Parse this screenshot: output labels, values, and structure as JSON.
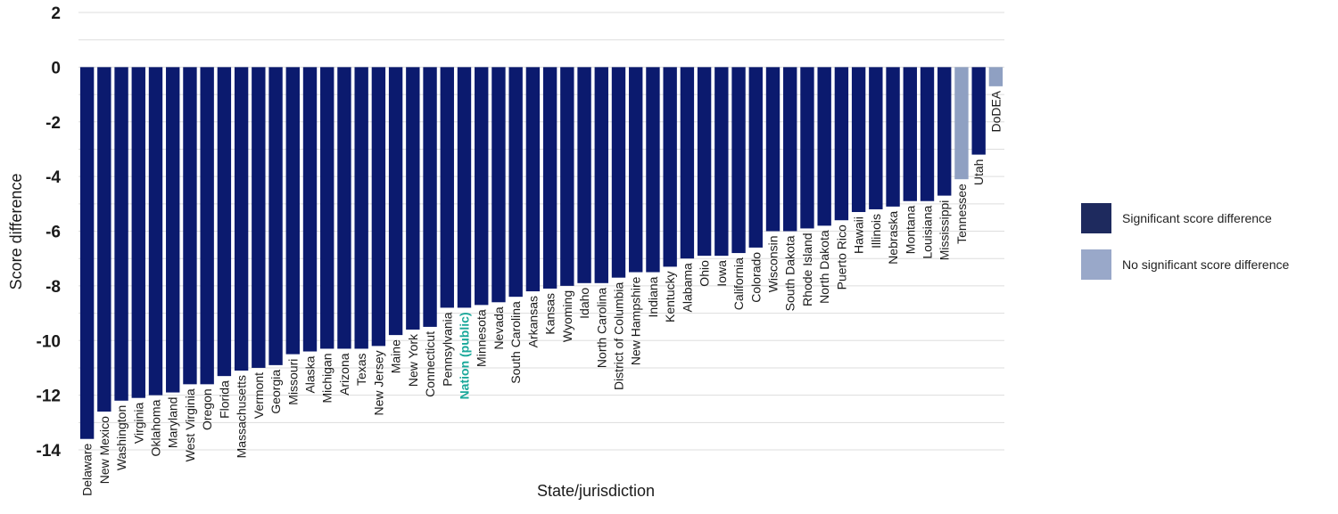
{
  "chart_data": {
    "type": "bar",
    "xlabel": "State/jurisdiction",
    "ylabel": "Score difference",
    "ylim": [
      -14,
      2
    ],
    "yticks": [
      2,
      0,
      -2,
      -4,
      -6,
      -8,
      -10,
      -12,
      -14
    ],
    "grid": true,
    "legend_placement": "right",
    "categories": [
      "Delaware",
      "New Mexico",
      "Washington",
      "Virginia",
      "Oklahoma",
      "Maryland",
      "West Virginia",
      "Oregon",
      "Florida",
      "Massachusetts",
      "Vermont",
      "Georgia",
      "Missouri",
      "Alaska",
      "Michigan",
      "Arizona",
      "Texas",
      "New Jersey",
      "Maine",
      "New York",
      "Connecticut",
      "Pennsylvania",
      "Nation (public)",
      "Minnesota",
      "Nevada",
      "South Carolina",
      "Arkansas",
      "Kansas",
      "Wyoming",
      "Idaho",
      "North Carolina",
      "District of Columbia",
      "New Hampshire",
      "Indiana",
      "Kentucky",
      "Alabama",
      "Ohio",
      "Iowa",
      "California",
      "Colorado",
      "Wisconsin",
      "South Dakota",
      "Rhode Island",
      "North Dakota",
      "Puerto Rico",
      "Hawaii",
      "Illinois",
      "Nebraska",
      "Montana",
      "Louisiana",
      "Mississippi",
      "Tennessee",
      "Utah",
      "DoDEA"
    ],
    "values": [
      -13.6,
      -12.6,
      -12.2,
      -12.1,
      -12.0,
      -11.9,
      -11.6,
      -11.6,
      -11.3,
      -11.1,
      -11.0,
      -10.9,
      -10.5,
      -10.4,
      -10.3,
      -10.3,
      -10.3,
      -10.2,
      -9.8,
      -9.6,
      -9.5,
      -8.8,
      -8.8,
      -8.7,
      -8.6,
      -8.4,
      -8.2,
      -8.1,
      -8.0,
      -7.9,
      -7.9,
      -7.7,
      -7.5,
      -7.5,
      -7.3,
      -7.0,
      -6.9,
      -6.9,
      -6.8,
      -6.6,
      -6.0,
      -6.0,
      -5.9,
      -5.8,
      -5.6,
      -5.3,
      -5.2,
      -5.1,
      -4.9,
      -4.9,
      -4.7,
      -4.1,
      -3.2,
      -0.7
    ],
    "significant": [
      true,
      true,
      true,
      true,
      true,
      true,
      true,
      true,
      true,
      true,
      true,
      true,
      true,
      true,
      true,
      true,
      true,
      true,
      true,
      true,
      true,
      true,
      true,
      true,
      true,
      true,
      true,
      true,
      true,
      true,
      true,
      true,
      true,
      true,
      true,
      true,
      true,
      true,
      true,
      true,
      true,
      true,
      true,
      true,
      true,
      true,
      true,
      true,
      true,
      true,
      true,
      false,
      true,
      false
    ],
    "highlight_category": "Nation (public)",
    "legend": {
      "significant_label": "Significant score difference",
      "not_significant_label": "No significant score difference"
    },
    "colors": {
      "significant": "#0b1a6e",
      "not_significant": "#8fa0c2",
      "legend_significant": "#1e2a5e",
      "legend_not_significant": "#99a8c9",
      "highlight_text": "#1aa89a",
      "grid": "#dddddd"
    }
  }
}
